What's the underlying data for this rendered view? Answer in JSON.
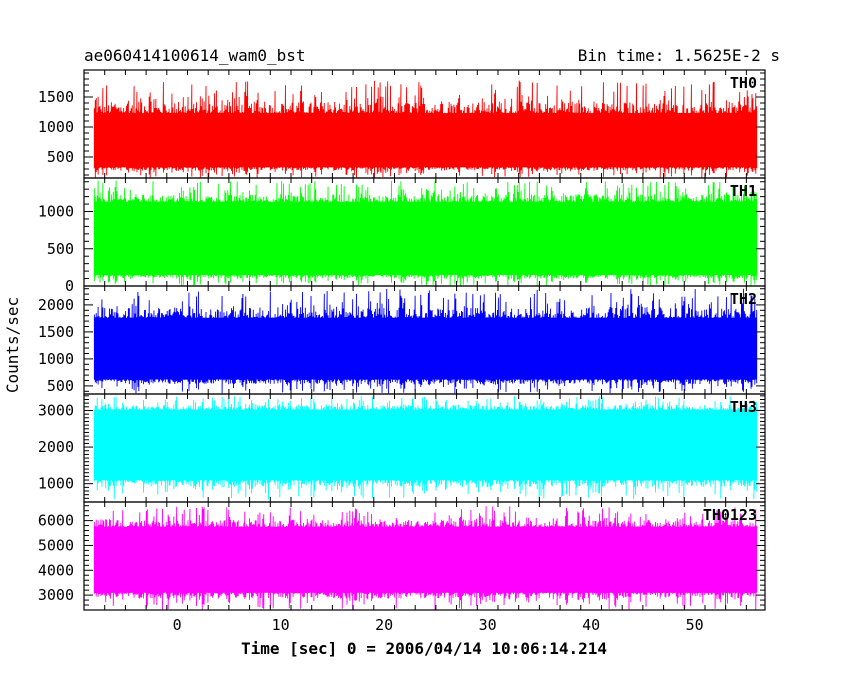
{
  "header": {
    "title": "ae060414100614_wam0_bst",
    "bin_time": "Bin time: 1.5625E-2 s"
  },
  "chart_data": {
    "type": "line",
    "xlabel": "Time [sec] 0 = 2006/04/14 10:06:14.214",
    "ylabel": "Counts/sec",
    "xlim": [
      -9,
      56.8
    ],
    "xticks": [
      0,
      10,
      20,
      30,
      40,
      50
    ],
    "data_x_range": [
      -8,
      56
    ],
    "bin_time_s": 0.015625,
    "panels": [
      {
        "name": "TH0",
        "color": "#ff0000",
        "ylim": [
          150,
          1950
        ],
        "yticks": [
          500,
          1000,
          1500
        ],
        "mean": 780,
        "band_low": 330,
        "band_high": 1230,
        "spike_low": 150,
        "spike_high": 1780
      },
      {
        "name": "TH1",
        "color": "#00ff00",
        "ylim": [
          0,
          1450
        ],
        "yticks": [
          0,
          500,
          1000
        ],
        "mean": 640,
        "band_low": 150,
        "band_high": 1130,
        "spike_low": 0,
        "spike_high": 1420
      },
      {
        "name": "TH2",
        "color": "#0000ff",
        "ylim": [
          350,
          2350
        ],
        "yticks": [
          500,
          1000,
          1500,
          2000
        ],
        "mean": 1180,
        "band_low": 620,
        "band_high": 1760,
        "spike_low": 360,
        "spike_high": 2300
      },
      {
        "name": "TH3",
        "color": "#00ffff",
        "ylim": [
          500,
          3450
        ],
        "yticks": [
          1000,
          2000,
          3000
        ],
        "mean": 2100,
        "band_low": 1100,
        "band_high": 3020,
        "spike_low": 560,
        "spike_high": 3400
      },
      {
        "name": "TH0123",
        "color": "#ff00ff",
        "ylim": [
          2400,
          6750
        ],
        "yticks": [
          3000,
          4000,
          5000,
          6000
        ],
        "mean": 4400,
        "band_low": 3100,
        "band_high": 5750,
        "spike_low": 2400,
        "spike_high": 6600
      }
    ]
  }
}
